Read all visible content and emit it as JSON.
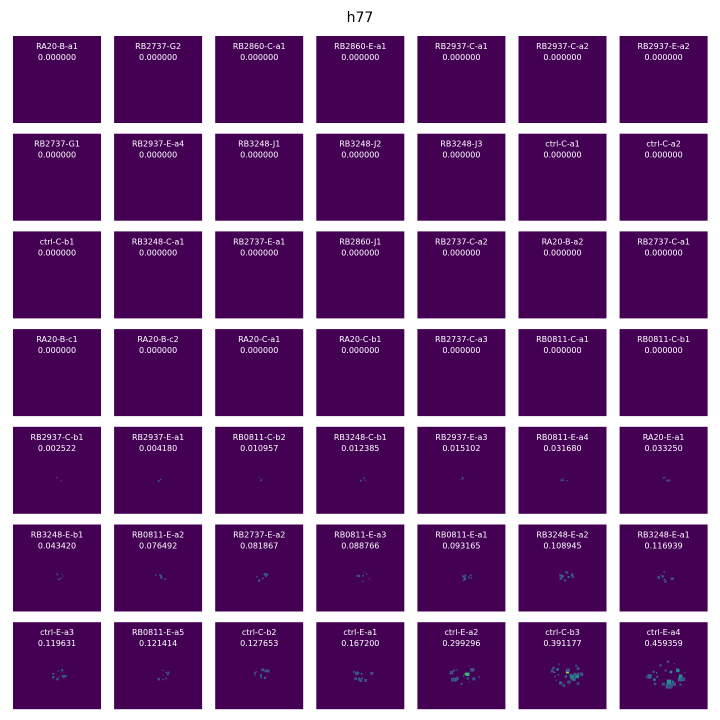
{
  "figure": {
    "title": "h77",
    "colors": {
      "background": "#440154",
      "text": "#ffffff"
    },
    "colormap": "viridis",
    "rows": 7,
    "cols": 7
  },
  "chart_data": {
    "type": "heatmap",
    "title": "h77",
    "grid": false,
    "panels": [
      {
        "name": "RA20-B-a1",
        "value": "0.000000"
      },
      {
        "name": "RB2737-G2",
        "value": "0.000000"
      },
      {
        "name": "RB2860-C-a1",
        "value": "0.000000"
      },
      {
        "name": "RB2860-E-a1",
        "value": "0.000000"
      },
      {
        "name": "RB2937-C-a1",
        "value": "0.000000"
      },
      {
        "name": "RB2937-C-a2",
        "value": "0.000000"
      },
      {
        "name": "RB2937-E-a2",
        "value": "0.000000"
      },
      {
        "name": "RB2737-G1",
        "value": "0.000000"
      },
      {
        "name": "RB2937-E-a4",
        "value": "0.000000"
      },
      {
        "name": "RB3248-J1",
        "value": "0.000000"
      },
      {
        "name": "RB3248-J2",
        "value": "0.000000"
      },
      {
        "name": "RB3248-J3",
        "value": "0.000000"
      },
      {
        "name": "ctrl-C-a1",
        "value": "0.000000"
      },
      {
        "name": "ctrl-C-a2",
        "value": "0.000000"
      },
      {
        "name": "ctrl-C-b1",
        "value": "0.000000"
      },
      {
        "name": "RB3248-C-a1",
        "value": "0.000000"
      },
      {
        "name": "RB2737-E-a1",
        "value": "0.000000"
      },
      {
        "name": "RB2860-J1",
        "value": "0.000000"
      },
      {
        "name": "RB2737-C-a2",
        "value": "0.000000"
      },
      {
        "name": "RA20-B-a2",
        "value": "0.000000"
      },
      {
        "name": "RB2737-C-a1",
        "value": "0.000000"
      },
      {
        "name": "RA20-B-c1",
        "value": "0.000000"
      },
      {
        "name": "RA20-B-c2",
        "value": "0.000000"
      },
      {
        "name": "RA20-C-a1",
        "value": "0.000000"
      },
      {
        "name": "RA20-C-b1",
        "value": "0.000000"
      },
      {
        "name": "RB2737-C-a3",
        "value": "0.000000"
      },
      {
        "name": "RB0811-C-a1",
        "value": "0.000000"
      },
      {
        "name": "RB0811-C-b1",
        "value": "0.000000"
      },
      {
        "name": "RB2937-C-b1",
        "value": "0.002522"
      },
      {
        "name": "RB2937-E-a1",
        "value": "0.004180"
      },
      {
        "name": "RB0811-C-b2",
        "value": "0.010957"
      },
      {
        "name": "RB3248-C-b1",
        "value": "0.012385"
      },
      {
        "name": "RB2937-E-a3",
        "value": "0.015102"
      },
      {
        "name": "RB0811-E-a4",
        "value": "0.031680"
      },
      {
        "name": "RA20-E-a1",
        "value": "0.033250"
      },
      {
        "name": "RB3248-E-b1",
        "value": "0.043420"
      },
      {
        "name": "RB0811-E-a2",
        "value": "0.076492"
      },
      {
        "name": "RB2737-E-a2",
        "value": "0.081867"
      },
      {
        "name": "RB0811-E-a3",
        "value": "0.088766"
      },
      {
        "name": "RB0811-E-a1",
        "value": "0.093165"
      },
      {
        "name": "RB3248-E-a2",
        "value": "0.108945"
      },
      {
        "name": "RB3248-E-a1",
        "value": "0.116939"
      },
      {
        "name": "ctrl-E-a3",
        "value": "0.119631"
      },
      {
        "name": "RB0811-E-a5",
        "value": "0.121414"
      },
      {
        "name": "ctrl-C-b2",
        "value": "0.127653"
      },
      {
        "name": "ctrl-E-a1",
        "value": "0.167200"
      },
      {
        "name": "ctrl-E-a2",
        "value": "0.299296"
      },
      {
        "name": "ctrl-C-b3",
        "value": "0.391177"
      },
      {
        "name": "ctrl-E-a4",
        "value": "0.459359"
      }
    ]
  }
}
